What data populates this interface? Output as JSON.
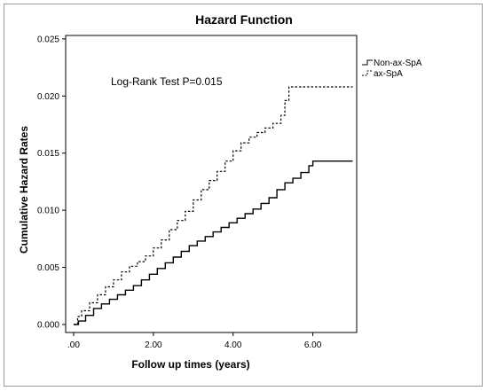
{
  "chart_data": {
    "type": "line",
    "title": "Hazard Function",
    "xlabel": "Follow up times (years)",
    "ylabel": "Cumulative Hazard Rates",
    "xlim": [
      -0.2,
      7.1
    ],
    "ylim": [
      -0.0007,
      0.0253
    ],
    "x_ticks": [
      0,
      2,
      4,
      6
    ],
    "x_tick_labels": [
      ".00",
      "2.00",
      "4.00",
      "6.00"
    ],
    "y_ticks": [
      0,
      0.005,
      0.01,
      0.015,
      0.02,
      0.025
    ],
    "y_tick_labels": [
      "0.000",
      "0.005",
      "0.010",
      "0.015",
      "0.020",
      "0.025"
    ],
    "annotation": "Log-Rank Test P=0.015",
    "grid": false,
    "legend_position": "top-right",
    "series": [
      {
        "name": "Non-ax-SpA",
        "style": "solid",
        "color": "#000000",
        "x": [
          0,
          0.12,
          0.3,
          0.5,
          0.7,
          0.9,
          1.1,
          1.3,
          1.5,
          1.7,
          1.9,
          2.1,
          2.3,
          2.5,
          2.7,
          2.9,
          3.1,
          3.3,
          3.5,
          3.7,
          3.9,
          4.1,
          4.3,
          4.5,
          4.7,
          4.9,
          5.1,
          5.3,
          5.5,
          5.7,
          5.9,
          6.0,
          7.0
        ],
        "y": [
          0,
          0.0003,
          0.0008,
          0.0014,
          0.0018,
          0.0022,
          0.0026,
          0.003,
          0.0034,
          0.0039,
          0.0044,
          0.0049,
          0.0054,
          0.0059,
          0.0064,
          0.0069,
          0.0073,
          0.0077,
          0.0081,
          0.0085,
          0.0089,
          0.0093,
          0.0097,
          0.0101,
          0.0106,
          0.0111,
          0.0118,
          0.0124,
          0.0128,
          0.0133,
          0.0139,
          0.0143,
          0.0143
        ]
      },
      {
        "name": "ax-SpA",
        "style": "dashed",
        "color": "#000000",
        "x": [
          0,
          0.1,
          0.2,
          0.4,
          0.6,
          0.8,
          1.0,
          1.2,
          1.4,
          1.6,
          1.8,
          2.0,
          2.2,
          2.4,
          2.6,
          2.8,
          3.0,
          3.2,
          3.4,
          3.6,
          3.8,
          4.0,
          4.2,
          4.4,
          4.6,
          4.8,
          5.0,
          5.2,
          5.3,
          5.4,
          7.0
        ],
        "y": [
          0,
          0.0007,
          0.0012,
          0.0019,
          0.0026,
          0.0033,
          0.0039,
          0.0046,
          0.0051,
          0.0055,
          0.006,
          0.0067,
          0.0074,
          0.0083,
          0.0091,
          0.0099,
          0.0109,
          0.0118,
          0.0126,
          0.0134,
          0.0143,
          0.0152,
          0.0159,
          0.0164,
          0.0168,
          0.0172,
          0.0176,
          0.0183,
          0.0196,
          0.0208,
          0.0208
        ]
      }
    ]
  }
}
